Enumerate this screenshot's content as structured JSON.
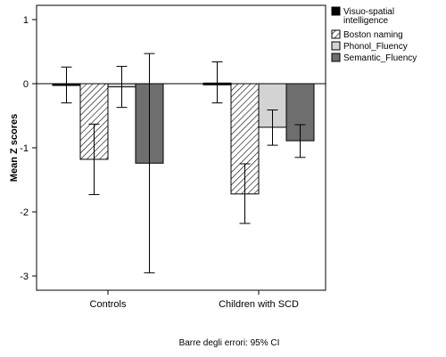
{
  "chart_data": {
    "type": "bar",
    "categories": [
      "Controls",
      "Children with SCD"
    ],
    "ylabel": "Mean Z scores",
    "ylim": [
      -3.25,
      1.15
    ],
    "yticks": [
      1,
      0,
      -1,
      -2,
      -3
    ],
    "grid": false,
    "legend_position": "right",
    "footnote": "Barre degli errori: 95% CI",
    "series": [
      {
        "name": "Visuo-spatial intelligence",
        "legend_lines": [
          "Visuo-spatial",
          "intelligence"
        ],
        "fill": "#000000",
        "pattern": "solid",
        "values": [
          -0.01,
          0.01
        ],
        "ci_low": [
          -0.3,
          -0.3
        ],
        "ci_high": [
          0.26,
          0.34
        ]
      },
      {
        "name": "Boston naming",
        "legend_lines": [
          "Boston naming"
        ],
        "fill": "#ffffff",
        "pattern": "hatch",
        "values": [
          -1.18,
          -1.72
        ],
        "ci_low": [
          -1.73,
          -2.18
        ],
        "ci_high": [
          -0.63,
          -1.25
        ]
      },
      {
        "name": "Phonol_Fluency",
        "legend_lines": [
          "Phonol_Fluency"
        ],
        "fill": "#d3d3d3",
        "pattern": "solid",
        "values": [
          -0.05,
          -0.68
        ],
        "ci_low": [
          -0.37,
          -0.96
        ],
        "ci_high": [
          0.27,
          -0.41
        ]
      },
      {
        "name": "Semantic_Fluency",
        "legend_lines": [
          "Semantic_Fluency"
        ],
        "fill": "#6e6e6e",
        "pattern": "solid",
        "values": [
          -1.24,
          -0.89
        ],
        "ci_low": [
          -2.95,
          -1.15
        ],
        "ci_high": [
          0.47,
          -0.64
        ]
      }
    ]
  }
}
